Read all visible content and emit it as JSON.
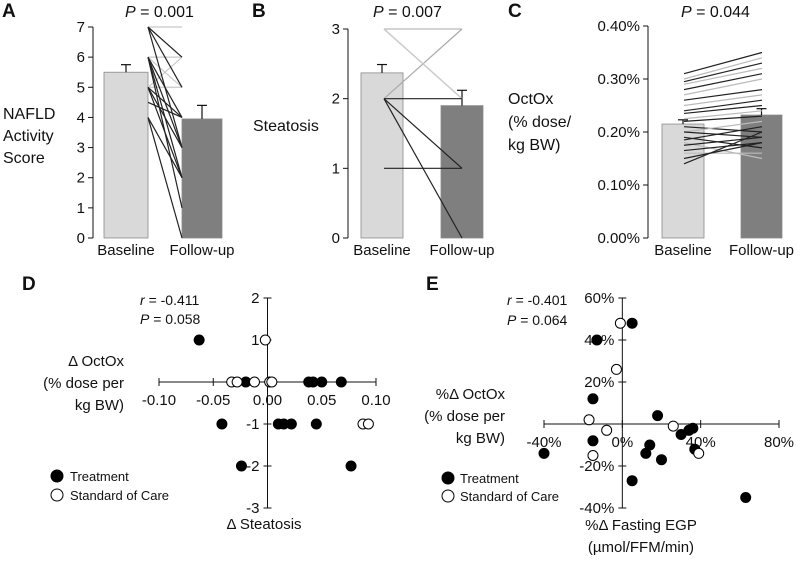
{
  "chart_data": [
    {
      "panel": "A",
      "type": "bar",
      "p_value": "0.001",
      "ylabel": [
        "NAFLD",
        "Activity",
        "Score"
      ],
      "categories": [
        "Baseline",
        "Follow-up"
      ],
      "values": [
        5.5,
        3.95
      ],
      "errors": [
        0.25,
        0.45
      ],
      "bar_colors": [
        "#d9d9d9",
        "#7f7f7f"
      ],
      "ylim": [
        0,
        7
      ],
      "yticks": [
        0,
        1,
        2,
        3,
        4,
        5,
        6,
        7
      ],
      "ytick_labels": [
        "0",
        "1",
        "2",
        "3",
        "4",
        "5",
        "6",
        "7"
      ],
      "paired_lines": [
        {
          "from": 7,
          "to": 7,
          "color": "#c8c8c8"
        },
        {
          "from": 6,
          "to": 6,
          "color": "#c8c8c8"
        },
        {
          "from": 6,
          "to": 5,
          "color": "#c8c8c8"
        },
        {
          "from": 5,
          "to": 6,
          "color": "#c8c8c8"
        },
        {
          "from": 5,
          "to": 5,
          "color": "#c8c8c8"
        },
        {
          "from": 7,
          "to": 6,
          "color": "#222222"
        },
        {
          "from": 7,
          "to": 5,
          "color": "#222222"
        },
        {
          "from": 7,
          "to": 3,
          "color": "#222222"
        },
        {
          "from": 6,
          "to": 4,
          "color": "#222222"
        },
        {
          "from": 6,
          "to": 3,
          "color": "#222222"
        },
        {
          "from": 6,
          "to": 2,
          "color": "#222222"
        },
        {
          "from": 6,
          "to": 1,
          "color": "#222222"
        },
        {
          "from": 5,
          "to": 4,
          "color": "#222222"
        },
        {
          "from": 5,
          "to": 2,
          "color": "#222222"
        },
        {
          "from": 4.5,
          "to": 4,
          "color": "#222222"
        },
        {
          "from": 4,
          "to": 2,
          "color": "#222222"
        },
        {
          "from": 4,
          "to": 0,
          "color": "#222222"
        },
        {
          "from": 5,
          "to": 3,
          "color": "#222222"
        }
      ]
    },
    {
      "panel": "B",
      "type": "bar",
      "p_value": "0.007",
      "ylabel": [
        "Steatosis"
      ],
      "categories": [
        "Baseline",
        "Follow-up"
      ],
      "values": [
        2.37,
        1.9
      ],
      "errors": [
        0.12,
        0.22
      ],
      "bar_colors": [
        "#d9d9d9",
        "#7f7f7f"
      ],
      "ylim": [
        0,
        3
      ],
      "yticks": [
        0,
        1,
        2,
        3
      ],
      "ytick_labels": [
        "0",
        "1",
        "2",
        "3"
      ],
      "paired_lines": [
        {
          "from": 3,
          "to": 3,
          "color": "#bbbbbb"
        },
        {
          "from": 3,
          "to": 2,
          "color": "#aaaaaa"
        },
        {
          "from": 2,
          "to": 3,
          "color": "#aaaaaa"
        },
        {
          "from": 3,
          "to": 2,
          "color": "#cccccc"
        },
        {
          "from": 2,
          "to": 2,
          "color": "#222222"
        },
        {
          "from": 2,
          "to": 1,
          "color": "#222222"
        },
        {
          "from": 2,
          "to": 0,
          "color": "#222222"
        },
        {
          "from": 1,
          "to": 1,
          "color": "#222222"
        }
      ]
    },
    {
      "panel": "C",
      "type": "bar",
      "p_value": "0.044",
      "ylabel": [
        "OctOx",
        "(% dose/",
        "kg BW)"
      ],
      "categories": [
        "Baseline",
        "Follow-up"
      ],
      "values": [
        0.215,
        0.232
      ],
      "errors": [
        0.008,
        0.012
      ],
      "bar_colors": [
        "#d9d9d9",
        "#7f7f7f"
      ],
      "ylim": [
        0,
        0.4
      ],
      "yticks": [
        0,
        0.1,
        0.2,
        0.3,
        0.4
      ],
      "ytick_labels": [
        "0.00%",
        "0.10%",
        "0.20%",
        "0.30%",
        "0.40%"
      ],
      "paired_lines": [
        {
          "from": 0.31,
          "to": 0.35,
          "color": "#222222"
        },
        {
          "from": 0.3,
          "to": 0.34,
          "color": "#bbbbbb"
        },
        {
          "from": 0.295,
          "to": 0.33,
          "color": "#222222"
        },
        {
          "from": 0.29,
          "to": 0.32,
          "color": "#bbbbbb"
        },
        {
          "from": 0.28,
          "to": 0.31,
          "color": "#222222"
        },
        {
          "from": 0.27,
          "to": 0.3,
          "color": "#bbbbbb"
        },
        {
          "from": 0.26,
          "to": 0.28,
          "color": "#222222"
        },
        {
          "from": 0.25,
          "to": 0.27,
          "color": "#bbbbbb"
        },
        {
          "from": 0.24,
          "to": 0.26,
          "color": "#222222"
        },
        {
          "from": 0.235,
          "to": 0.25,
          "color": "#222222"
        },
        {
          "from": 0.225,
          "to": 0.24,
          "color": "#bbbbbb"
        },
        {
          "from": 0.22,
          "to": 0.23,
          "color": "#222222"
        },
        {
          "from": 0.21,
          "to": 0.2,
          "color": "#222222"
        },
        {
          "from": 0.2,
          "to": 0.22,
          "color": "#bbbbbb"
        },
        {
          "from": 0.19,
          "to": 0.17,
          "color": "#222222"
        },
        {
          "from": 0.185,
          "to": 0.21,
          "color": "#222222"
        },
        {
          "from": 0.18,
          "to": 0.15,
          "color": "#bbbbbb"
        },
        {
          "from": 0.175,
          "to": 0.19,
          "color": "#222222"
        },
        {
          "from": 0.165,
          "to": 0.18,
          "color": "#222222"
        },
        {
          "from": 0.16,
          "to": 0.16,
          "color": "#bbbbbb"
        },
        {
          "from": 0.15,
          "to": 0.18,
          "color": "#222222"
        },
        {
          "from": 0.14,
          "to": 0.2,
          "color": "#222222"
        },
        {
          "from": 0.2,
          "to": 0.19,
          "color": "#222222"
        }
      ]
    },
    {
      "panel": "D",
      "type": "scatter",
      "r_label": "r",
      "r_value": "= -0.411",
      "p_value": "= 0.058",
      "xlabel": "Δ Steatosis",
      "ylabel": [
        "Δ OctOx",
        "(% dose per",
        "kg BW)"
      ],
      "xlim": [
        -0.1,
        0.1
      ],
      "ylim": [
        -3,
        2
      ],
      "xticks": [
        -0.1,
        -0.05,
        0,
        0.05,
        0.1
      ],
      "xtick_labels": [
        "-0.10",
        "-0.05",
        "0.00",
        "0.05",
        "0.10"
      ],
      "yticks": [
        -3,
        -2,
        -1,
        1,
        2
      ],
      "ytick_labels": [
        "-3",
        "-2",
        "-1",
        "1",
        "2"
      ],
      "legend": [
        "Treatment",
        "Standard of Care"
      ],
      "series": [
        {
          "name": "Treatment",
          "fill": "#000000",
          "points": [
            [
              -0.063,
              1
            ],
            [
              -0.02,
              0
            ],
            [
              -0.042,
              -1
            ],
            [
              -0.024,
              -2
            ],
            [
              0.01,
              -1
            ],
            [
              0.015,
              -1
            ],
            [
              0.022,
              -1
            ],
            [
              0.038,
              0
            ],
            [
              0.042,
              0
            ],
            [
              0.05,
              0
            ],
            [
              0.045,
              -1
            ],
            [
              0.068,
              0
            ],
            [
              0.077,
              -2
            ]
          ]
        },
        {
          "name": "Standard of Care",
          "fill": "#ffffff",
          "points": [
            [
              -0.002,
              1
            ],
            [
              -0.033,
              0
            ],
            [
              -0.028,
              0
            ],
            [
              -0.012,
              0
            ],
            [
              0.002,
              0
            ],
            [
              0.004,
              0
            ],
            [
              0.088,
              -1
            ],
            [
              0.093,
              -1
            ]
          ]
        }
      ]
    },
    {
      "panel": "E",
      "type": "scatter",
      "r_label": "r",
      "r_value": "= -0.401",
      "p_value": "= 0.064",
      "xlabel": [
        "%Δ Fasting EGP",
        "(µmol/FFM/min)"
      ],
      "ylabel": [
        "%Δ OctOx",
        "(% dose per",
        "kg BW)"
      ],
      "xlim": [
        -40,
        80
      ],
      "ylim": [
        -40,
        60
      ],
      "xticks": [
        -40,
        0,
        40,
        80
      ],
      "xtick_labels": [
        "-40%",
        "0%",
        "40%",
        "80%"
      ],
      "yticks": [
        -40,
        -20,
        20,
        40,
        60
      ],
      "ytick_labels": [
        "-40%",
        "-20%",
        "20%",
        "40%",
        "60%"
      ],
      "legend": [
        "Treatment",
        "Standard of Care"
      ],
      "series": [
        {
          "name": "Treatment",
          "fill": "#000000",
          "points": [
            [
              -13,
              40
            ],
            [
              5,
              48
            ],
            [
              -15,
              12
            ],
            [
              -40,
              -14
            ],
            [
              -15,
              -8
            ],
            [
              5,
              -27
            ],
            [
              18,
              4
            ],
            [
              14,
              -10
            ],
            [
              12,
              -14
            ],
            [
              20,
              -17
            ],
            [
              30,
              -5
            ],
            [
              34,
              -3
            ],
            [
              36,
              -2
            ],
            [
              37,
              -12
            ],
            [
              63,
              -35
            ]
          ]
        },
        {
          "name": "Standard of Care",
          "fill": "#ffffff",
          "points": [
            [
              -1,
              48
            ],
            [
              -3,
              26
            ],
            [
              -17,
              2
            ],
            [
              -8,
              -3
            ],
            [
              -15,
              -15
            ],
            [
              26,
              -1
            ],
            [
              39,
              -14
            ]
          ]
        }
      ]
    }
  ]
}
